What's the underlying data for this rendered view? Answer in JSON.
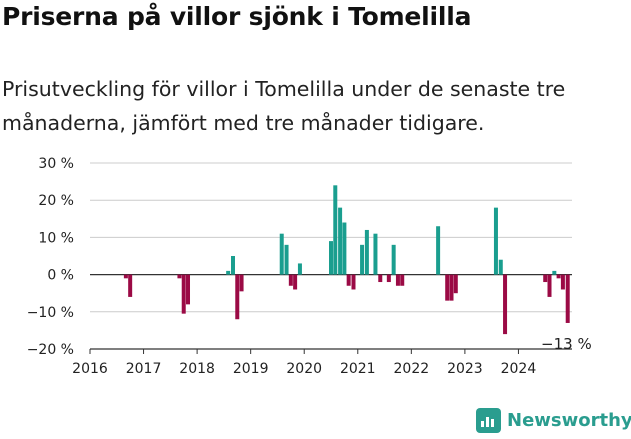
{
  "title": "Priserna på villor sjönk i Tomelilla",
  "subtitle": "Prisutveckling för villor i Tomelilla under de senaste tre månaderna, jämfört med tre månader tidigare.",
  "brand": {
    "name": "Newsworthy",
    "color": "#2a9d8f",
    "icon": "newsworthy-logo-icon"
  },
  "colors": {
    "positive": "#1a9e8f",
    "negative": "#9b0a45",
    "axis": "#333333",
    "grid": "#cccccc"
  },
  "chart_data": {
    "type": "bar",
    "ylim": [
      -20,
      30
    ],
    "yticks": [
      -20,
      -10,
      0,
      10,
      20,
      30
    ],
    "ytick_labels": [
      "−20 %",
      "−10 %",
      "0 %",
      "10 %",
      "20 %",
      "30 %"
    ],
    "xlim": [
      2016.0,
      2025.0
    ],
    "xticks": [
      2016,
      2017,
      2018,
      2019,
      2020,
      2021,
      2022,
      2023,
      2024
    ],
    "xtick_labels": [
      "2016",
      "2017",
      "2018",
      "2019",
      "2020",
      "2021",
      "2022",
      "2023",
      "2024"
    ],
    "grid": true,
    "end_label": "−13 %",
    "x": [
      2016.67,
      2016.75,
      2017.67,
      2017.75,
      2017.83,
      2018.58,
      2018.67,
      2018.75,
      2018.83,
      2019.58,
      2019.67,
      2019.75,
      2019.83,
      2019.92,
      2020.5,
      2020.58,
      2020.67,
      2020.75,
      2020.83,
      2020.92,
      2021.08,
      2021.17,
      2021.33,
      2021.42,
      2021.58,
      2021.67,
      2021.75,
      2021.83,
      2022.5,
      2022.67,
      2022.75,
      2022.83,
      2023.58,
      2023.67,
      2023.75,
      2024.5,
      2024.58,
      2024.67,
      2024.75,
      2024.83,
      2024.92
    ],
    "values": [
      -1,
      -6,
      -1,
      -10.5,
      -8,
      1,
      5,
      -12,
      -4.5,
      11,
      8,
      -3,
      -4,
      3,
      9,
      24,
      18,
      14,
      -3,
      -4,
      8,
      12,
      11,
      -2,
      -2,
      8,
      -3,
      -3,
      13,
      -7,
      -7,
      -5,
      18,
      4,
      -16,
      -2,
      -6,
      1,
      -1,
      -4,
      -13
    ]
  }
}
